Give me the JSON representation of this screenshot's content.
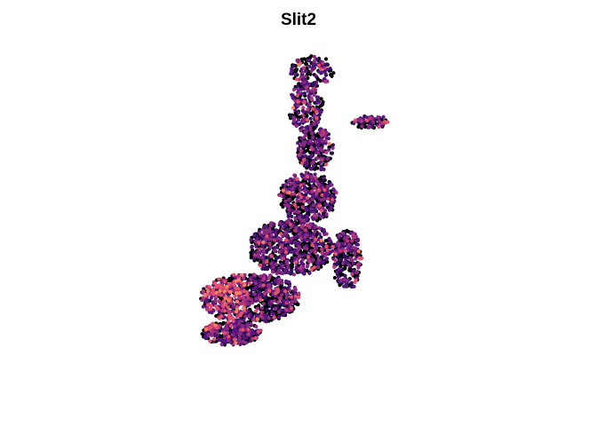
{
  "chart_data": {
    "type": "scatter",
    "title": "Slit2",
    "xlabel": "",
    "ylabel": "",
    "axes_visible": false,
    "legend": "none",
    "grid": false,
    "colormap": "magma",
    "color_scale": [
      "#000004",
      "#2c115f",
      "#5a167e",
      "#8a2a81",
      "#b73779",
      "#e2506c",
      "#f8825f"
    ],
    "total_points_approx": 3600,
    "body_clusters": [
      {
        "name": "head",
        "cx": 28.7,
        "cy": 24.3,
        "rx": 1.15,
        "ry": 0.75,
        "n": 140
      },
      {
        "name": "upper-stem",
        "cx": 28.4,
        "cy": 22.5,
        "rx": 0.9,
        "ry": 1.3,
        "n": 220
      },
      {
        "name": "lower-stem",
        "cx": 28.9,
        "cy": 20.3,
        "rx": 1.0,
        "ry": 1.1,
        "n": 240
      },
      {
        "name": "fin",
        "cx": 31.8,
        "cy": 21.7,
        "rx": 1.0,
        "ry": 0.3,
        "n": 90
      },
      {
        "name": "upper-body",
        "cx": 28.5,
        "cy": 17.8,
        "rx": 1.55,
        "ry": 1.25,
        "n": 480
      },
      {
        "name": "mid-body",
        "cx": 27.6,
        "cy": 15.2,
        "rx": 2.3,
        "ry": 1.4,
        "n": 760
      },
      {
        "name": "lower-body",
        "cx": 25.4,
        "cy": 12.6,
        "rx": 2.7,
        "ry": 1.25,
        "n": 880
      },
      {
        "name": "bottom-lobe",
        "cx": 24.4,
        "cy": 10.8,
        "rx": 1.6,
        "ry": 0.6,
        "n": 360
      },
      {
        "name": "right-lobe",
        "cx": 30.6,
        "cy": 14.6,
        "rx": 0.8,
        "ry": 1.5,
        "n": 260
      }
    ],
    "bright_region": {
      "cx": 23.2,
      "cy": 12.8,
      "rx": 2.2,
      "ry": 1.8
    },
    "xlim": [
      12,
      44
    ],
    "ylim": [
      6,
      28
    ]
  }
}
